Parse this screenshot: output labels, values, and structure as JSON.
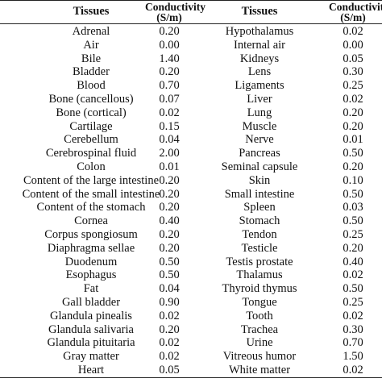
{
  "table": {
    "header": [
      [
        "Tissues"
      ],
      [
        "Conductivity",
        "(S/m)"
      ],
      [
        "Tissues"
      ],
      [
        "Conductivity",
        "(S/m)"
      ]
    ],
    "rows": [
      [
        "Adrenal",
        "0.20",
        "Hypothalamus",
        "0.02"
      ],
      [
        "Air",
        "0.00",
        "Internal air",
        "0.00"
      ],
      [
        "Bile",
        "1.40",
        "Kidneys",
        "0.05"
      ],
      [
        "Bladder",
        "0.20",
        "Lens",
        "0.30"
      ],
      [
        "Blood",
        "0.70",
        "Ligaments",
        "0.25"
      ],
      [
        "Bone (cancellous)",
        "0.07",
        "Liver",
        "0.02"
      ],
      [
        "Bone (cortical)",
        "0.02",
        "Lung",
        "0.20"
      ],
      [
        "Cartilage",
        "0.15",
        "Muscle",
        "0.20"
      ],
      [
        "Cerebellum",
        "0.04",
        "Nerve",
        "0.01"
      ],
      [
        "Cerebrospinal fluid",
        "2.00",
        "Pancreas",
        "0.50"
      ],
      [
        "Colon",
        "0.01",
        "Seminal capsule",
        "0.20"
      ],
      [
        "Content of the large intestine",
        "0.20",
        "Skin",
        "0.10"
      ],
      [
        "Content of the small intestine",
        "0.20",
        "Small intestine",
        "0.50"
      ],
      [
        "Content of the stomach",
        "0.20",
        "Spleen",
        "0.03"
      ],
      [
        "Cornea",
        "0.40",
        "Stomach",
        "0.50"
      ],
      [
        "Corpus spongiosum",
        "0.20",
        "Tendon",
        "0.25"
      ],
      [
        "Diaphragma sellae",
        "0.20",
        "Testicle",
        "0.20"
      ],
      [
        "Duodenum",
        "0.50",
        "Testis prostate",
        "0.40"
      ],
      [
        "Esophagus",
        "0.50",
        "Thalamus",
        "0.02"
      ],
      [
        "Fat",
        "0.04",
        "Thyroid thymus",
        "0.50"
      ],
      [
        "Gall bladder",
        "0.90",
        "Tongue",
        "0.25"
      ],
      [
        "Glandula pinealis",
        "0.02",
        "Tooth",
        "0.02"
      ],
      [
        "Glandula salivaria",
        "0.20",
        "Trachea",
        "0.30"
      ],
      [
        "Glandula pituitaria",
        "0.02",
        "Urine",
        "0.70"
      ],
      [
        "Gray matter",
        "0.02",
        "Vitreous humor",
        "1.50"
      ],
      [
        "Heart",
        "0.05",
        "White matter",
        "0.02"
      ]
    ]
  }
}
